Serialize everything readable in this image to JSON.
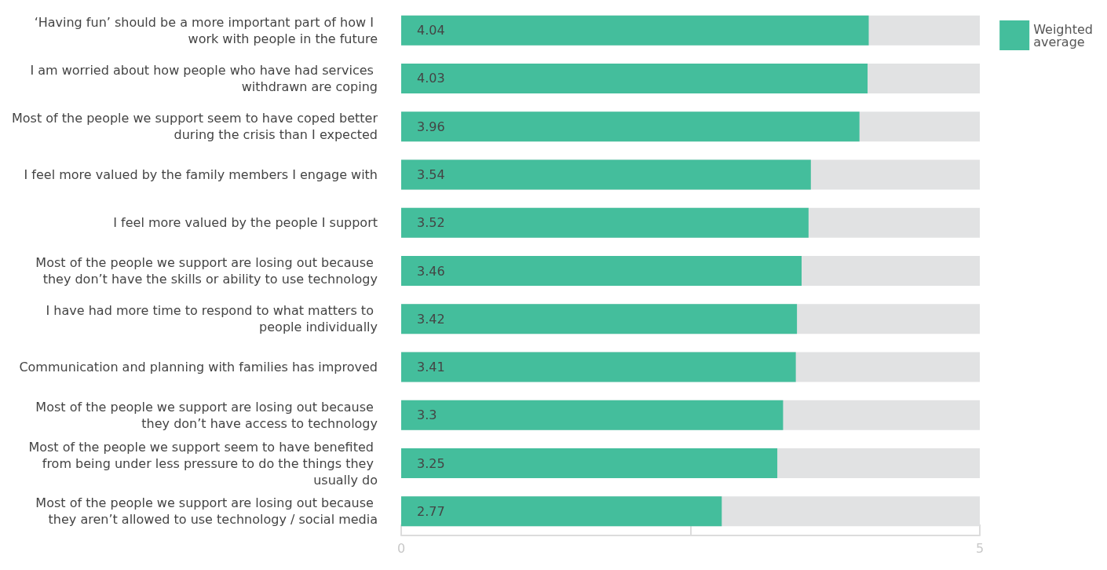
{
  "chart_data": {
    "type": "bar",
    "orientation": "horizontal",
    "categories": [
      "‘Having fun’ should be a more important part of how I work with people in the future",
      "I am worried about how people who have had services withdrawn are coping",
      "Most of the people we support seem to have coped better during the crisis than I expected",
      "I feel more valued by the family members I engage with",
      "I feel more valued by the people I support",
      "Most of the people we support are losing out because they don’t have the skills or ability to use technology",
      "I have had more time to respond to what matters to people individually",
      "Communication and planning with families has improved",
      "Most of the people we support are losing out because they don’t have access to technology",
      "Most of the people we support seem to have benefited from being under less pressure to do the things they usually do",
      "Most of the people we support are losing out because they aren’t allowed to use technology / social media"
    ],
    "series": [
      {
        "name": "Weighted average",
        "color": "#44be9c",
        "values": [
          4.04,
          4.03,
          3.96,
          3.54,
          3.52,
          3.46,
          3.42,
          3.41,
          3.3,
          3.25,
          2.77
        ]
      }
    ],
    "xlim": [
      0,
      5
    ],
    "xticks": [
      0,
      {
        "value": 2.5,
        "label": null
      },
      5
    ],
    "data_labels": true,
    "grid": false,
    "legend": "top right"
  }
}
